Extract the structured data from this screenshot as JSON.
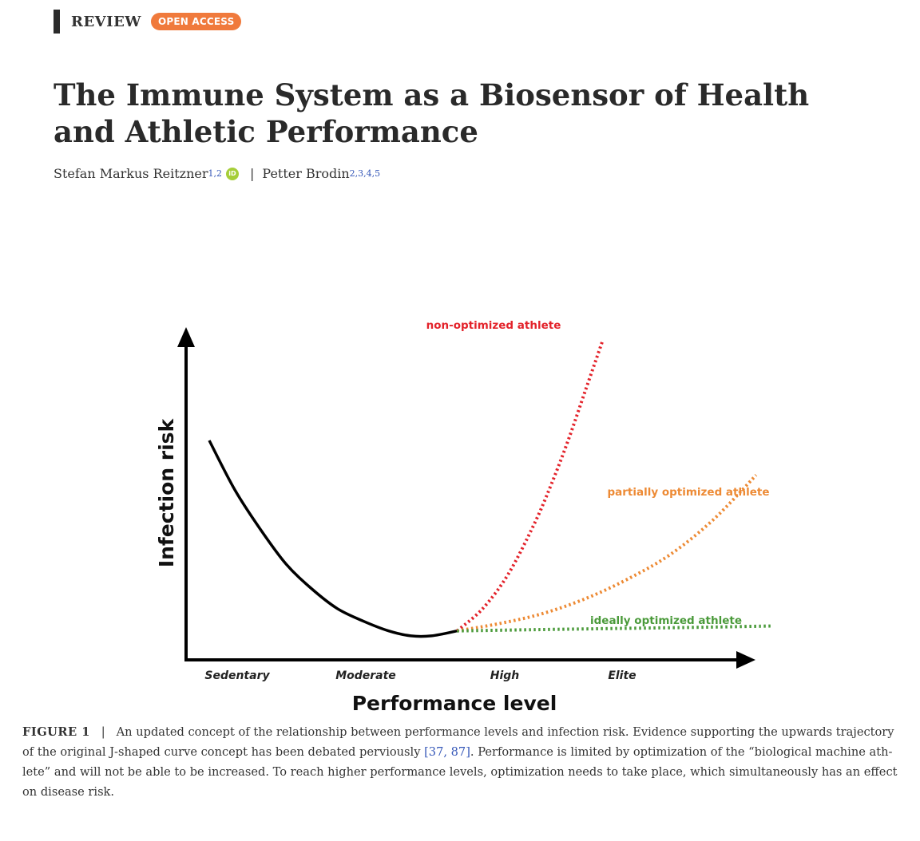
{
  "header": {
    "label": "REVIEW",
    "badge": "OPEN ACCESS"
  },
  "title": "The Immune System as a Biosensor of Health and Athletic Performance",
  "authors": [
    {
      "name": "Stefan Markus Reitzner",
      "affil": "1,2",
      "orcid_icon": "orcid-icon"
    },
    {
      "name": "Petter Brodin",
      "affil": "2,3,4,5"
    }
  ],
  "author_separator": "|",
  "figure": {
    "chart_data": {
      "type": "line",
      "title": "",
      "xlabel": "Performance level",
      "ylabel": "Infection risk",
      "x_categories": [
        "Sedentary",
        "Moderate",
        "High",
        "Elite"
      ],
      "series": [
        {
          "name": "",
          "style": "solid",
          "color": "#000000",
          "x": [
            0.0,
            0.15,
            0.3,
            0.45,
            0.6,
            0.75,
            0.9,
            1.05,
            1.18,
            1.3,
            1.45
          ],
          "y": [
            0.8,
            0.6,
            0.44,
            0.3,
            0.2,
            0.12,
            0.07,
            0.03,
            0.01,
            0.01,
            0.03
          ]
        },
        {
          "name": "non-optimized athlete",
          "style": "dotted",
          "color": "#e3222a",
          "x": [
            1.45,
            1.6,
            1.75,
            1.9,
            2.0,
            2.1,
            2.2,
            2.3
          ],
          "y": [
            0.03,
            0.12,
            0.26,
            0.46,
            0.62,
            0.8,
            1.0,
            1.2
          ]
        },
        {
          "name": "partially optimized athlete",
          "style": "dotted",
          "color": "#ed8a34",
          "x": [
            1.45,
            1.7,
            1.95,
            2.2,
            2.45,
            2.7,
            2.95,
            3.2
          ],
          "y": [
            0.03,
            0.06,
            0.1,
            0.16,
            0.24,
            0.34,
            0.48,
            0.66
          ]
        },
        {
          "name": "ideally optimized athlete",
          "style": "dotted",
          "color": "#4a9a3a",
          "x": [
            1.45,
            1.9,
            2.4,
            2.9,
            3.3
          ],
          "y": [
            0.03,
            0.035,
            0.04,
            0.045,
            0.05
          ]
        }
      ],
      "grid": false
    }
  },
  "caption": {
    "label": "FIGURE 1",
    "separator": "|",
    "text_a": "An updated concept of the relationship between performance levels and infection risk. Evidence supporting the upwards trajectory of the original J-shaped curve concept has been debated perviously ",
    "ref": "[37, 87]",
    "text_b": ". Performance is limited by optimization of the “biological machine ath-lete” and will not be able to be increased. To reach higher performance levels, optimization needs to take place, which simultaneously has an effect on disease risk."
  }
}
